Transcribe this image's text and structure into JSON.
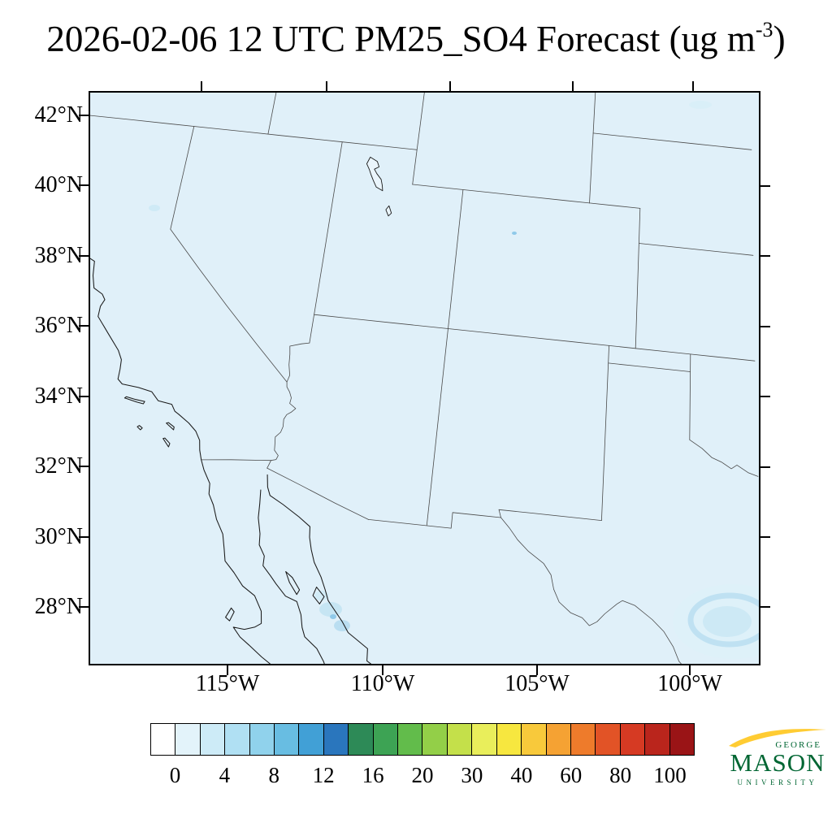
{
  "title": {
    "prefix": "2026-02-06 12 UTC PM25_SO4 Forecast (ug m",
    "exponent": "-3",
    "suffix": ")"
  },
  "axes": {
    "lat": [
      "42°N",
      "40°N",
      "38°N",
      "36°N",
      "34°N",
      "32°N",
      "30°N",
      "28°N"
    ],
    "lon": [
      "115°W",
      "110°W",
      "105°W",
      "100°W"
    ]
  },
  "colorbar": {
    "labels": [
      "0",
      "4",
      "8",
      "12",
      "16",
      "20",
      "30",
      "40",
      "60",
      "80",
      "100"
    ],
    "colors": [
      "#ffffff",
      "#e3f3fa",
      "#cdebf7",
      "#b0e0f3",
      "#90d2ec",
      "#68bde2",
      "#41a0d6",
      "#2a76bd",
      "#2d8a57",
      "#3da354",
      "#62bc4b",
      "#93cf48",
      "#c4e04a",
      "#e9ee5b",
      "#f7e73f",
      "#f8c93b",
      "#f5a233",
      "#ee7b2b",
      "#e25326",
      "#d63a23",
      "#ba251c",
      "#9a1416"
    ]
  },
  "map": {
    "background": "#e0f0f9",
    "frame_color": "#000000"
  },
  "logo": {
    "george": "GEORGE",
    "mason": "MASON",
    "university": "UNIVERSITY",
    "green": "#006633",
    "gold": "#FFCC33"
  }
}
